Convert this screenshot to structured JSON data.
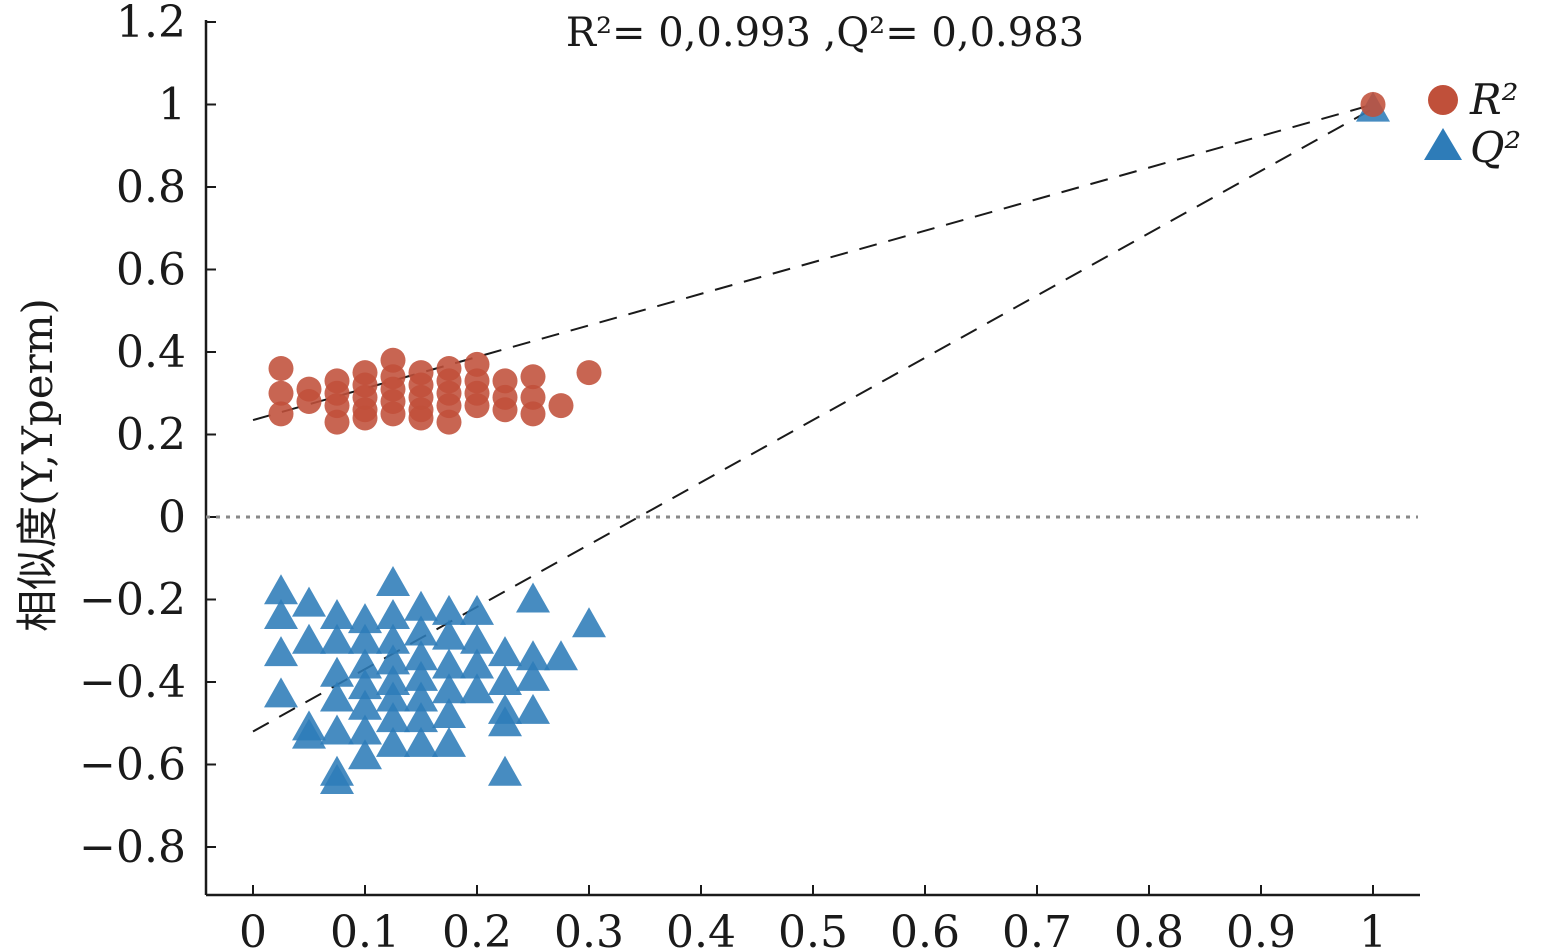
{
  "chart_data": {
    "type": "scatter",
    "title": "R²= 0,0.993 ,Q²= 0,0.983",
    "xlabel": "",
    "ylabel": "相似度(Y,Yperm)",
    "xlim": [
      -0.04,
      1.04
    ],
    "ylim": [
      -0.92,
      1.2
    ],
    "x_ticks": [
      0,
      0.1,
      0.2,
      0.3,
      0.4,
      0.5,
      0.6,
      0.7,
      0.8,
      0.9,
      1
    ],
    "x_tick_labels": [
      "0",
      "0.1",
      "0.2",
      "0.3",
      "0.4",
      "0.5",
      "0.6",
      "0.7",
      "0.8",
      "0.9",
      "1"
    ],
    "y_ticks": [
      -0.8,
      -0.6,
      -0.4,
      -0.2,
      0,
      0.2,
      0.4,
      0.6,
      0.8,
      1,
      1.2
    ],
    "y_tick_labels": [
      "−0.8",
      "−0.6",
      "−0.4",
      "−0.2",
      "0",
      "0.2",
      "0.4",
      "0.6",
      "0.8",
      "1",
      "1.2"
    ],
    "grid": false,
    "legend_position": "top-right",
    "series": [
      {
        "name": "R²",
        "marker": "circle",
        "color": "#c0503a",
        "points": [
          [
            0.025,
            0.36
          ],
          [
            0.025,
            0.3
          ],
          [
            0.025,
            0.25
          ],
          [
            0.05,
            0.31
          ],
          [
            0.05,
            0.28
          ],
          [
            0.075,
            0.33
          ],
          [
            0.075,
            0.3
          ],
          [
            0.075,
            0.27
          ],
          [
            0.075,
            0.23
          ],
          [
            0.1,
            0.35
          ],
          [
            0.1,
            0.32
          ],
          [
            0.1,
            0.29
          ],
          [
            0.1,
            0.26
          ],
          [
            0.1,
            0.24
          ],
          [
            0.125,
            0.38
          ],
          [
            0.125,
            0.34
          ],
          [
            0.125,
            0.31
          ],
          [
            0.125,
            0.28
          ],
          [
            0.125,
            0.25
          ],
          [
            0.15,
            0.35
          ],
          [
            0.15,
            0.32
          ],
          [
            0.15,
            0.29
          ],
          [
            0.15,
            0.26
          ],
          [
            0.15,
            0.24
          ],
          [
            0.175,
            0.36
          ],
          [
            0.175,
            0.33
          ],
          [
            0.175,
            0.3
          ],
          [
            0.175,
            0.27
          ],
          [
            0.175,
            0.23
          ],
          [
            0.2,
            0.37
          ],
          [
            0.2,
            0.33
          ],
          [
            0.2,
            0.3
          ],
          [
            0.2,
            0.27
          ],
          [
            0.225,
            0.33
          ],
          [
            0.225,
            0.29
          ],
          [
            0.225,
            0.26
          ],
          [
            0.25,
            0.34
          ],
          [
            0.25,
            0.29
          ],
          [
            0.25,
            0.25
          ],
          [
            0.275,
            0.27
          ],
          [
            0.3,
            0.35
          ],
          [
            1,
            1
          ]
        ]
      },
      {
        "name": "Q²",
        "marker": "triangle",
        "color": "#2e7cb8",
        "points": [
          [
            0.025,
            -0.18
          ],
          [
            0.025,
            -0.24
          ],
          [
            0.025,
            -0.33
          ],
          [
            0.025,
            -0.43
          ],
          [
            0.05,
            -0.21
          ],
          [
            0.05,
            -0.3
          ],
          [
            0.05,
            -0.51
          ],
          [
            0.05,
            -0.53
          ],
          [
            0.075,
            -0.24
          ],
          [
            0.075,
            -0.3
          ],
          [
            0.075,
            -0.38
          ],
          [
            0.075,
            -0.44
          ],
          [
            0.075,
            -0.52
          ],
          [
            0.075,
            -0.62
          ],
          [
            0.075,
            -0.64
          ],
          [
            0.1,
            -0.25
          ],
          [
            0.1,
            -0.3
          ],
          [
            0.1,
            -0.36
          ],
          [
            0.1,
            -0.41
          ],
          [
            0.1,
            -0.46
          ],
          [
            0.1,
            -0.52
          ],
          [
            0.1,
            -0.58
          ],
          [
            0.125,
            -0.16
          ],
          [
            0.125,
            -0.24
          ],
          [
            0.125,
            -0.3
          ],
          [
            0.125,
            -0.35
          ],
          [
            0.125,
            -0.4
          ],
          [
            0.125,
            -0.44
          ],
          [
            0.125,
            -0.49
          ],
          [
            0.125,
            -0.55
          ],
          [
            0.15,
            -0.22
          ],
          [
            0.15,
            -0.28
          ],
          [
            0.15,
            -0.34
          ],
          [
            0.15,
            -0.39
          ],
          [
            0.15,
            -0.44
          ],
          [
            0.15,
            -0.49
          ],
          [
            0.15,
            -0.55
          ],
          [
            0.175,
            -0.23
          ],
          [
            0.175,
            -0.29
          ],
          [
            0.175,
            -0.36
          ],
          [
            0.175,
            -0.42
          ],
          [
            0.175,
            -0.48
          ],
          [
            0.175,
            -0.55
          ],
          [
            0.2,
            -0.23
          ],
          [
            0.2,
            -0.3
          ],
          [
            0.2,
            -0.36
          ],
          [
            0.2,
            -0.42
          ],
          [
            0.225,
            -0.33
          ],
          [
            0.225,
            -0.4
          ],
          [
            0.225,
            -0.47
          ],
          [
            0.225,
            -0.5
          ],
          [
            0.225,
            -0.62
          ],
          [
            0.25,
            -0.2
          ],
          [
            0.25,
            -0.34
          ],
          [
            0.25,
            -0.39
          ],
          [
            0.25,
            -0.47
          ],
          [
            0.275,
            -0.34
          ],
          [
            0.3,
            -0.26
          ],
          [
            1,
            0.99
          ]
        ]
      }
    ],
    "reference_lines": [
      {
        "name": "R² regression",
        "x": [
          0,
          1
        ],
        "y": [
          0.235,
          1.0
        ],
        "style": "dashed",
        "color": "#1a1a1a"
      },
      {
        "name": "Q² regression",
        "x": [
          0,
          1
        ],
        "y": [
          -0.52,
          0.99
        ],
        "style": "dashed",
        "color": "#1a1a1a"
      },
      {
        "name": "zero line",
        "y": 0,
        "style": "dotted",
        "color": "#888888"
      }
    ]
  }
}
